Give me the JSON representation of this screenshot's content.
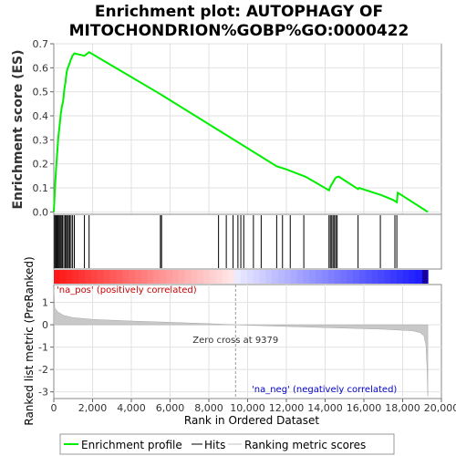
{
  "chart_data": {
    "type": "line",
    "title_line1": "Enrichment plot: AUTOPHAGY OF",
    "title_line2": "MITOCHONDRION%GOBP%GO:0000422",
    "es_panel": {
      "ylabel": "Enrichment score (ES)",
      "ylim": [
        -0.01,
        0.7
      ],
      "yticks": [
        0.0,
        0.1,
        0.2,
        0.3,
        0.4,
        0.5,
        0.6,
        0.7
      ],
      "ytick_labels": [
        "0.0",
        "0.1",
        "0.2",
        "0.3",
        "0.4",
        "0.5",
        "0.6",
        "0.7"
      ],
      "line_color": "#00ee00",
      "series": [
        {
          "x": [
            0,
            60,
            120,
            180,
            230,
            300,
            360,
            420,
            480,
            540,
            600,
            660,
            720,
            780,
            860,
            960,
            1060,
            1580,
            1820,
            5500,
            5560,
            15700,
            15750,
            14200,
            14250,
            14300,
            14380,
            14450,
            14520,
            14600,
            14700,
            13000,
            12000,
            11500,
            16900,
            17500,
            17700,
            17750,
            19300
          ],
          "y": [
            0.0,
            0.1,
            0.18,
            0.25,
            0.31,
            0.36,
            0.41,
            0.44,
            0.46,
            0.51,
            0.54,
            0.58,
            0.6,
            0.61,
            0.63,
            0.65,
            0.66,
            0.65,
            0.665,
            0.49,
            0.487,
            0.095,
            0.1,
            0.09,
            0.1,
            0.11,
            0.12,
            0.13,
            0.14,
            0.145,
            0.147,
            0.146,
            0.177,
            0.19,
            0.07,
            0.05,
            0.04,
            0.08,
            0.0
          ]
        }
      ]
    },
    "hits": [
      40,
      90,
      140,
      190,
      240,
      290,
      340,
      390,
      450,
      520,
      590,
      650,
      700,
      760,
      820,
      890,
      970,
      1060,
      1580,
      1820,
      5500,
      5560,
      8500,
      8900,
      9250,
      9500,
      9650,
      9800,
      10300,
      10700,
      11500,
      11800,
      12200,
      12900,
      14200,
      14270,
      14340,
      14410,
      14480,
      14550,
      14620,
      15700,
      16850,
      17600,
      17700
    ],
    "zone_labels": {
      "pos": "'na_pos' (positively correlated)",
      "neg": "'na_neg' (negatively correlated)",
      "zero_cross": "Zero cross at 9379"
    },
    "metric_panel": {
      "ylabel": "Ranked list metric (PreRanked)",
      "ylim": [
        -3.3,
        1.8
      ],
      "yticks": [
        -3,
        -2,
        -1,
        0,
        1
      ],
      "ytick_labels": [
        "-3",
        "-2",
        "-1",
        "0",
        "1"
      ],
      "curve_x": [
        0,
        50,
        200,
        500,
        1000,
        2000,
        4000,
        6000,
        8000,
        9379,
        11000,
        13000,
        15000,
        17000,
        18500,
        18900,
        19100,
        19200,
        19260,
        19300
      ],
      "curve_y": [
        1.6,
        0.75,
        0.58,
        0.42,
        0.32,
        0.24,
        0.17,
        0.11,
        0.05,
        0.0,
        -0.05,
        -0.1,
        -0.15,
        -0.2,
        -0.27,
        -0.35,
        -0.5,
        -0.9,
        -2.0,
        -3.2
      ]
    },
    "xaxis": {
      "xlabel": "Rank in Ordered Dataset",
      "xlim": [
        0,
        20000
      ],
      "xticks": [
        0,
        2000,
        4000,
        6000,
        8000,
        10000,
        12000,
        14000,
        16000,
        18000,
        20000
      ],
      "xtick_labels": [
        "0",
        "2,000",
        "4,000",
        "6,000",
        "8,000",
        "10,000",
        "12,000",
        "14,000",
        "16,000",
        "18,000",
        "20,000"
      ],
      "dataset_size": 19300,
      "zero_cross": 9379
    },
    "legend": {
      "placement": "bottom",
      "entries": [
        {
          "label": "Enrichment profile",
          "color": "#00ee00"
        },
        {
          "label": "Hits",
          "color": "#000000"
        },
        {
          "label": "Ranking metric scores",
          "color": "#c0c0c0"
        }
      ]
    }
  }
}
